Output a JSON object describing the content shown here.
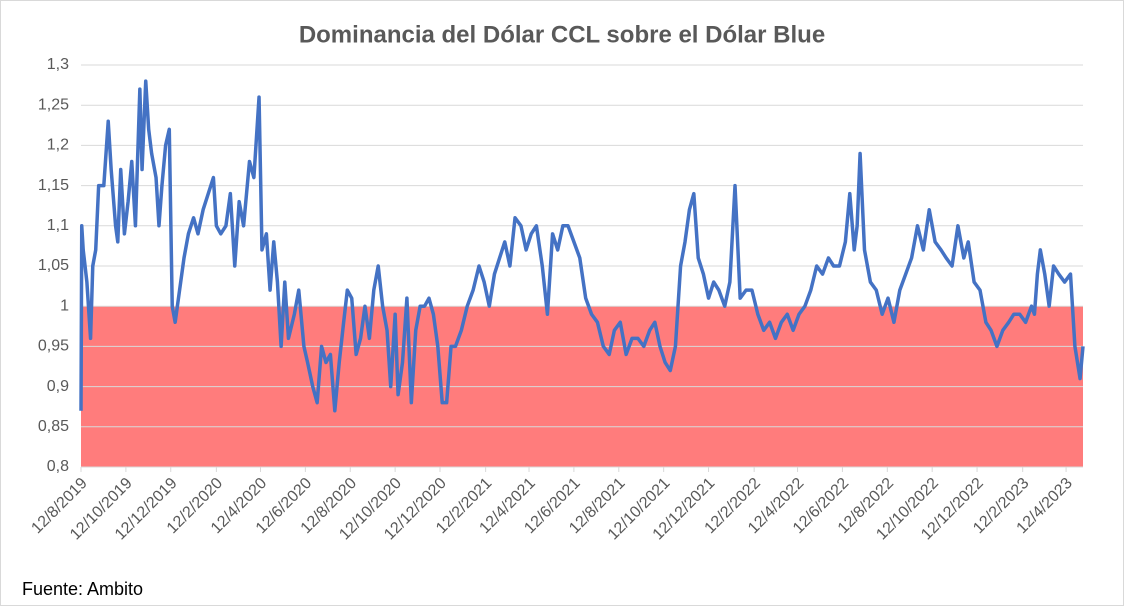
{
  "chart_data": {
    "type": "line",
    "title": "Dominancia del Dólar CCL sobre el Dólar Blue",
    "source": "Fuente: Ambito",
    "color": "#4472c4",
    "grid": true,
    "shade": {
      "below": 1,
      "color": "#ff7c7c"
    },
    "ylim": [
      0.8,
      1.3
    ],
    "yticks": [
      {
        "value": 0.8,
        "label": "0,8"
      },
      {
        "value": 0.85,
        "label": "0,85"
      },
      {
        "value": 0.9,
        "label": "0,9"
      },
      {
        "value": 0.95,
        "label": "0,95"
      },
      1,
      {
        "value": 1.05,
        "label": "1,05"
      },
      {
        "value": 1.1,
        "label": "1,1"
      },
      {
        "value": 1.15,
        "label": "1,15"
      },
      {
        "value": 1.2,
        "label": "1,2"
      },
      {
        "value": 1.25,
        "label": "1,25"
      },
      {
        "value": 1.3,
        "label": "1,3"
      }
    ],
    "xlim": [
      "12/8/2019",
      "5/5/2023"
    ],
    "xticks": [
      "12/8/2019",
      "12/10/2019",
      "12/12/2019",
      "12/2/2020",
      "12/4/2020",
      "12/6/2020",
      "12/8/2020",
      "12/10/2020",
      "12/12/2020",
      "12/2/2021",
      "12/4/2021",
      "12/6/2021",
      "12/8/2021",
      "12/10/2021",
      "12/12/2021",
      "12/2/2022",
      "12/4/2022",
      "12/6/2022",
      "12/8/2022",
      "12/10/2022",
      "12/12/2022",
      "12/2/2023",
      "12/4/2023"
    ],
    "x": [
      "12/8/2019",
      "13/8/2019",
      "15/8/2019",
      "20/8/2019",
      "25/8/2019",
      "28/8/2019",
      "1/9/2019",
      "5/9/2019",
      "12/9/2019",
      "18/9/2019",
      "22/9/2019",
      "28/9/2019",
      "1/10/2019",
      "5/10/2019",
      "10/10/2019",
      "15/10/2019",
      "20/10/2019",
      "25/10/2019",
      "31/10/2019",
      "3/11/2019",
      "8/11/2019",
      "12/11/2019",
      "16/11/2019",
      "22/11/2019",
      "26/11/2019",
      "30/11/2019",
      "5/12/2019",
      "10/12/2019",
      "14/12/2019",
      "18/12/2019",
      "24/12/2019",
      "30/12/2019",
      "5/1/2020",
      "12/1/2020",
      "18/1/2020",
      "25/1/2020",
      "1/2/2020",
      "8/2/2020",
      "12/2/2020",
      "18/2/2020",
      "25/2/2020",
      "2/3/2020",
      "8/3/2020",
      "14/3/2020",
      "20/3/2020",
      "28/3/2020",
      "3/4/2020",
      "10/4/2020",
      "14/4/2020",
      "20/4/2020",
      "25/4/2020",
      "30/4/2020",
      "5/5/2020",
      "10/5/2020",
      "15/5/2020",
      "20/5/2020",
      "28/5/2020",
      "3/6/2020",
      "10/6/2020",
      "15/6/2020",
      "22/6/2020",
      "28/6/2020",
      "4/7/2020",
      "10/7/2020",
      "16/7/2020",
      "22/7/2020",
      "28/7/2020",
      "3/8/2020",
      "8/8/2020",
      "14/8/2020",
      "20/8/2020",
      "26/8/2020",
      "1/9/2020",
      "7/9/2020",
      "13/9/2020",
      "19/9/2020",
      "25/9/2020",
      "1/10/2020",
      "6/10/2020",
      "12/10/2020",
      "16/10/2020",
      "22/10/2020",
      "28/10/2020",
      "3/11/2020",
      "9/11/2020",
      "15/11/2020",
      "21/11/2020",
      "27/11/2020",
      "3/12/2020",
      "9/12/2020",
      "15/12/2020",
      "21/12/2020",
      "27/12/2020",
      "2/1/2021",
      "10/1/2021",
      "18/1/2021",
      "26/1/2021",
      "3/2/2021",
      "10/2/2021",
      "17/2/2021",
      "24/2/2021",
      "3/3/2021",
      "10/3/2021",
      "17/3/2021",
      "24/3/2021",
      "1/4/2021",
      "8/4/2021",
      "15/4/2021",
      "22/4/2021",
      "30/4/2021",
      "7/5/2021",
      "14/5/2021",
      "21/5/2021",
      "28/5/2021",
      "4/6/2021",
      "12/6/2021",
      "20/6/2021",
      "28/6/2021",
      "6/7/2021",
      "14/7/2021",
      "22/7/2021",
      "30/7/2021",
      "6/8/2021",
      "14/8/2021",
      "22/8/2021",
      "30/8/2021",
      "7/9/2021",
      "15/9/2021",
      "23/9/2021",
      "30/9/2021",
      "7/10/2021",
      "14/10/2021",
      "21/10/2021",
      "28/10/2021",
      "4/11/2021",
      "10/11/2021",
      "16/11/2021",
      "22/11/2021",
      "28/11/2021",
      "5/12/2021",
      "12/12/2021",
      "19/12/2021",
      "26/12/2021",
      "3/1/2022",
      "10/1/2022",
      "17/1/2022",
      "24/1/2022",
      "1/2/2022",
      "9/2/2022",
      "17/2/2022",
      "25/2/2022",
      "5/3/2022",
      "13/3/2022",
      "21/3/2022",
      "29/3/2022",
      "6/4/2022",
      "14/4/2022",
      "22/4/2022",
      "30/4/2022",
      "8/5/2022",
      "16/5/2022",
      "24/5/2022",
      "31/5/2022",
      "8/6/2022",
      "16/6/2022",
      "22/6/2022",
      "28/6/2022",
      "2/7/2022",
      "6/7/2022",
      "12/7/2022",
      "20/7/2022",
      "28/7/2022",
      "5/8/2022",
      "13/8/2022",
      "21/8/2022",
      "29/8/2022",
      "6/9/2022",
      "14/9/2022",
      "22/9/2022",
      "30/9/2022",
      "8/10/2022",
      "16/10/2022",
      "24/10/2022",
      "31/10/2022",
      "8/11/2022",
      "16/11/2022",
      "24/11/2022",
      "30/11/2022",
      "8/12/2022",
      "16/12/2022",
      "24/12/2022",
      "31/12/2022",
      "8/1/2023",
      "16/1/2023",
      "24/1/2023",
      "31/1/2023",
      "8/2/2023",
      "16/2/2023",
      "24/2/2023",
      "28/2/2023",
      "4/3/2023",
      "8/3/2023",
      "14/3/2023",
      "20/3/2023",
      "26/3/2023",
      "2/4/2023",
      "10/4/2023",
      "18/4/2023",
      "24/4/2023",
      "1/5/2023",
      "5/5/2023"
    ],
    "values": [
      0.87,
      1.1,
      1.07,
      1.03,
      0.96,
      1.05,
      1.07,
      1.15,
      1.15,
      1.23,
      1.17,
      1.1,
      1.08,
      1.17,
      1.09,
      1.13,
      1.18,
      1.1,
      1.27,
      1.17,
      1.28,
      1.22,
      1.19,
      1.16,
      1.1,
      1.15,
      1.2,
      1.22,
      1.0,
      0.98,
      1.02,
      1.06,
      1.09,
      1.11,
      1.09,
      1.12,
      1.14,
      1.16,
      1.1,
      1.09,
      1.1,
      1.14,
      1.05,
      1.13,
      1.1,
      1.18,
      1.16,
      1.26,
      1.07,
      1.09,
      1.02,
      1.08,
      1.03,
      0.95,
      1.03,
      0.96,
      0.99,
      1.02,
      0.95,
      0.93,
      0.9,
      0.88,
      0.95,
      0.93,
      0.94,
      0.87,
      0.93,
      0.98,
      1.02,
      1.01,
      0.94,
      0.96,
      1.0,
      0.96,
      1.02,
      1.05,
      1.0,
      0.97,
      0.9,
      0.99,
      0.89,
      0.93,
      1.01,
      0.88,
      0.97,
      1.0,
      1.0,
      1.01,
      0.99,
      0.95,
      0.88,
      0.88,
      0.95,
      0.95,
      0.97,
      1.0,
      1.02,
      1.05,
      1.03,
      1.0,
      1.04,
      1.06,
      1.08,
      1.05,
      1.11,
      1.1,
      1.07,
      1.09,
      1.1,
      1.05,
      0.99,
      1.09,
      1.07,
      1.1,
      1.1,
      1.08,
      1.06,
      1.01,
      0.99,
      0.98,
      0.95,
      0.94,
      0.97,
      0.98,
      0.94,
      0.96,
      0.96,
      0.95,
      0.97,
      0.98,
      0.95,
      0.93,
      0.92,
      0.95,
      1.05,
      1.08,
      1.12,
      1.14,
      1.06,
      1.04,
      1.01,
      1.03,
      1.02,
      1.0,
      1.03,
      1.15,
      1.01,
      1.02,
      1.02,
      0.99,
      0.97,
      0.98,
      0.96,
      0.98,
      0.99,
      0.97,
      0.99,
      1.0,
      1.02,
      1.05,
      1.04,
      1.06,
      1.05,
      1.05,
      1.08,
      1.14,
      1.07,
      1.1,
      1.19,
      1.07,
      1.03,
      1.02,
      0.99,
      1.01,
      0.98,
      1.02,
      1.04,
      1.06,
      1.1,
      1.07,
      1.12,
      1.08,
      1.07,
      1.06,
      1.05,
      1.1,
      1.06,
      1.08,
      1.03,
      1.02,
      0.98,
      0.97,
      0.95,
      0.97,
      0.98,
      0.99,
      0.99,
      0.98,
      1.0,
      0.99,
      1.04,
      1.07,
      1.04,
      1.0,
      1.05,
      1.04,
      1.03,
      1.04,
      0.95,
      0.91,
      0.95
    ]
  }
}
